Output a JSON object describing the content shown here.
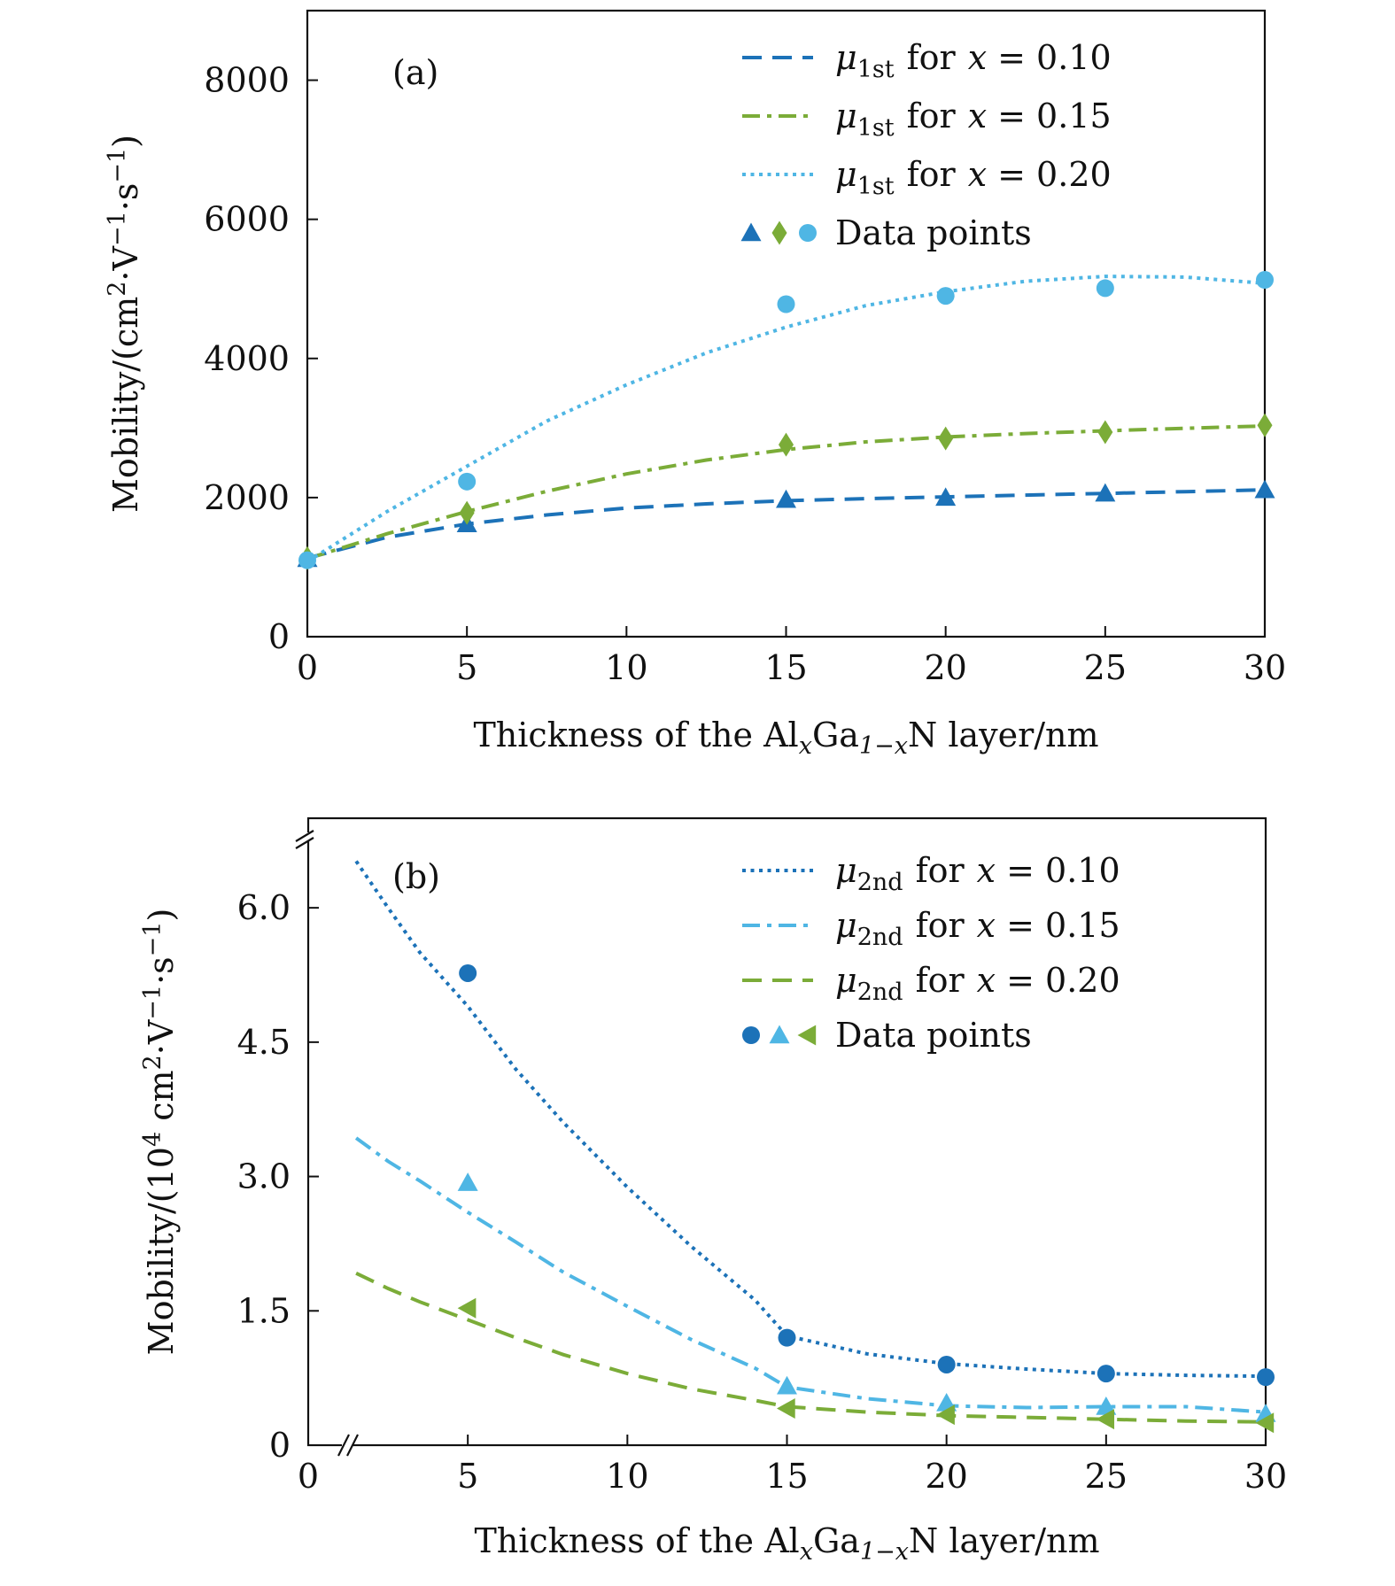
{
  "colors": {
    "dark_blue": "#1c72b8",
    "green": "#7bac38",
    "light_blue": "#4fb6e4",
    "axis": "#111111"
  },
  "chart_data": [
    {
      "type": "line",
      "panel_label": "(a)",
      "xlabel_parts": [
        "Thickness of the Al",
        "x",
        "Ga",
        "1−x",
        "N layer/nm"
      ],
      "ylabel_parts": [
        "Mobility/(cm",
        "2",
        "·V",
        "−1",
        "·s",
        "−1",
        ")"
      ],
      "xlim": [
        0,
        30
      ],
      "ylim": [
        0,
        9000
      ],
      "xticks": [
        0,
        5,
        10,
        15,
        20,
        25,
        30
      ],
      "xtick_labels": [
        "0",
        "5",
        "10",
        "15",
        "20",
        "25",
        "30"
      ],
      "yticks": [
        0,
        2000,
        4000,
        6000,
        8000
      ],
      "ytick_labels": [
        "0",
        "2000",
        "4000",
        "6000",
        "8000"
      ],
      "legend_position": "top-right",
      "legend": [
        {
          "mu_symbol": "μ",
          "mu_sub": "1st",
          "text": "for",
          "var": "x",
          "eq": "= 0.10",
          "color": "dark_blue",
          "dash": "dashed"
        },
        {
          "mu_symbol": "μ",
          "mu_sub": "1st",
          "text": "for",
          "var": "x",
          "eq": "= 0.15",
          "color": "green",
          "dash": "dashdot"
        },
        {
          "mu_symbol": "μ",
          "mu_sub": "1st",
          "text": "for",
          "var": "x",
          "eq": "= 0.20",
          "color": "light_blue",
          "dash": "dotted"
        }
      ],
      "markers_legend_label": "Data points",
      "markers_legend_shapes": [
        {
          "shape": "triangle",
          "color": "dark_blue"
        },
        {
          "shape": "diamond",
          "color": "green"
        },
        {
          "shape": "circle",
          "color": "light_blue"
        }
      ],
      "series": [
        {
          "color": "dark_blue",
          "dash": "dashed",
          "marker": "triangle",
          "fit": {
            "x": [
              0,
              2.5,
              5,
              7.5,
              10,
              12.5,
              15,
              17.5,
              20,
              22.5,
              25,
              27.5,
              30
            ],
            "y": [
              1130,
              1430,
              1620,
              1750,
              1850,
              1910,
              1955,
              1985,
              2010,
              2035,
              2060,
              2085,
              2110
            ]
          },
          "points": {
            "x": [
              0,
              5,
              15,
              20,
              25,
              30
            ],
            "y": [
              1120,
              1620,
              1970,
              2000,
              2060,
              2110
            ]
          }
        },
        {
          "color": "green",
          "dash": "dashdot",
          "marker": "diamond",
          "fit": {
            "x": [
              0,
              2.5,
              5,
              7.5,
              10,
              12.5,
              15,
              17.5,
              20,
              22.5,
              25,
              27.5,
              30
            ],
            "y": [
              1120,
              1480,
              1800,
              2090,
              2340,
              2540,
              2690,
              2800,
              2870,
              2920,
              2960,
              2995,
              3030
            ]
          },
          "points": {
            "x": [
              0,
              5,
              15,
              20,
              25,
              30
            ],
            "y": [
              1130,
              1780,
              2760,
              2850,
              2940,
              3040
            ]
          }
        },
        {
          "color": "light_blue",
          "dash": "dotted",
          "marker": "circle",
          "fit": {
            "x": [
              0,
              2.5,
              5,
              7.5,
              10,
              12.5,
              15,
              17.5,
              20,
              22.5,
              25,
              27.5,
              30
            ],
            "y": [
              1080,
              1800,
              2450,
              3100,
              3620,
              4080,
              4450,
              4760,
              4960,
              5110,
              5180,
              5170,
              5080
            ]
          },
          "points": {
            "x": [
              0,
              5,
              15,
              20,
              25,
              30
            ],
            "y": [
              1100,
              2230,
              4780,
              4900,
              5010,
              5130
            ]
          }
        }
      ]
    },
    {
      "type": "line",
      "panel_label": "(b)",
      "xlabel_parts": [
        "Thickness of the Al",
        "x",
        "Ga",
        "1−x",
        "N layer/nm"
      ],
      "ylabel_parts": [
        "Mobility/(10",
        "4",
        " cm",
        "2",
        "·V",
        "−1",
        "·s",
        "−1",
        ")"
      ],
      "xlim": [
        0,
        30
      ],
      "ylim": [
        0,
        7.0
      ],
      "axis_break": true,
      "xticks": [
        0,
        5,
        10,
        15,
        20,
        25,
        30
      ],
      "xtick_labels": [
        "0",
        "5",
        "10",
        "15",
        "20",
        "25",
        "30"
      ],
      "yticks": [
        0,
        1.5,
        3.0,
        4.5,
        6.0
      ],
      "ytick_labels": [
        "0",
        "1.5",
        "3.0",
        "4.5",
        "6.0"
      ],
      "legend_position": "top-right",
      "legend": [
        {
          "mu_symbol": "μ",
          "mu_sub": "2nd",
          "text": "for",
          "var": "x",
          "eq": "= 0.10",
          "color": "dark_blue",
          "dash": "dotted"
        },
        {
          "mu_symbol": "μ",
          "mu_sub": "2nd",
          "text": "for",
          "var": "x",
          "eq": "= 0.15",
          "color": "light_blue",
          "dash": "dashdot"
        },
        {
          "mu_symbol": "μ",
          "mu_sub": "2nd",
          "text": "for",
          "var": "x",
          "eq": "= 0.20",
          "color": "green",
          "dash": "dashed"
        }
      ],
      "markers_legend_label": "Data points",
      "markers_legend_shapes": [
        {
          "shape": "circle",
          "color": "dark_blue"
        },
        {
          "shape": "triangle",
          "color": "light_blue"
        },
        {
          "shape": "triangle-left",
          "color": "green"
        }
      ],
      "series": [
        {
          "color": "dark_blue",
          "dash": "dotted",
          "marker": "circle",
          "fit": {
            "x": [
              1.5,
              2.5,
              3.5,
              5,
              6.5,
              8,
              10,
              12,
              14,
              15,
              17.5,
              20,
              22.5,
              25,
              27.5,
              30
            ],
            "y": [
              6.52,
              6.0,
              5.5,
              4.9,
              4.2,
              3.6,
              2.88,
              2.22,
              1.62,
              1.22,
              1.02,
              0.91,
              0.85,
              0.8,
              0.78,
              0.77
            ]
          },
          "points": {
            "x": [
              5,
              15,
              20,
              25,
              30
            ],
            "y": [
              5.27,
              1.2,
              0.9,
              0.8,
              0.76
            ]
          }
        },
        {
          "color": "light_blue",
          "dash": "dashdot",
          "marker": "triangle",
          "fit": {
            "x": [
              1.5,
              2.5,
              3.5,
              5,
              6.5,
              8,
              10,
              12,
              14,
              15,
              17.5,
              20,
              22.5,
              25,
              27.5,
              30
            ],
            "y": [
              3.43,
              3.17,
              2.95,
              2.6,
              2.27,
              1.93,
              1.55,
              1.18,
              0.86,
              0.65,
              0.52,
              0.44,
              0.42,
              0.43,
              0.43,
              0.37
            ]
          },
          "points": {
            "x": [
              5,
              15,
              20,
              25,
              30
            ],
            "y": [
              2.93,
              0.66,
              0.47,
              0.43,
              0.35
            ]
          }
        },
        {
          "color": "green",
          "dash": "dashed",
          "marker": "triangle-left",
          "fit": {
            "x": [
              1.5,
              2.5,
              3.5,
              5,
              6.5,
              8,
              10,
              12,
              14,
              15,
              17.5,
              20,
              22.5,
              25,
              27.5,
              30
            ],
            "y": [
              1.92,
              1.75,
              1.6,
              1.4,
              1.2,
              1.01,
              0.8,
              0.63,
              0.5,
              0.43,
              0.37,
              0.33,
              0.31,
              0.29,
              0.27,
              0.26
            ]
          },
          "points": {
            "x": [
              5,
              15,
              20,
              25,
              30
            ],
            "y": [
              1.53,
              0.41,
              0.34,
              0.29,
              0.25
            ]
          }
        }
      ]
    }
  ]
}
